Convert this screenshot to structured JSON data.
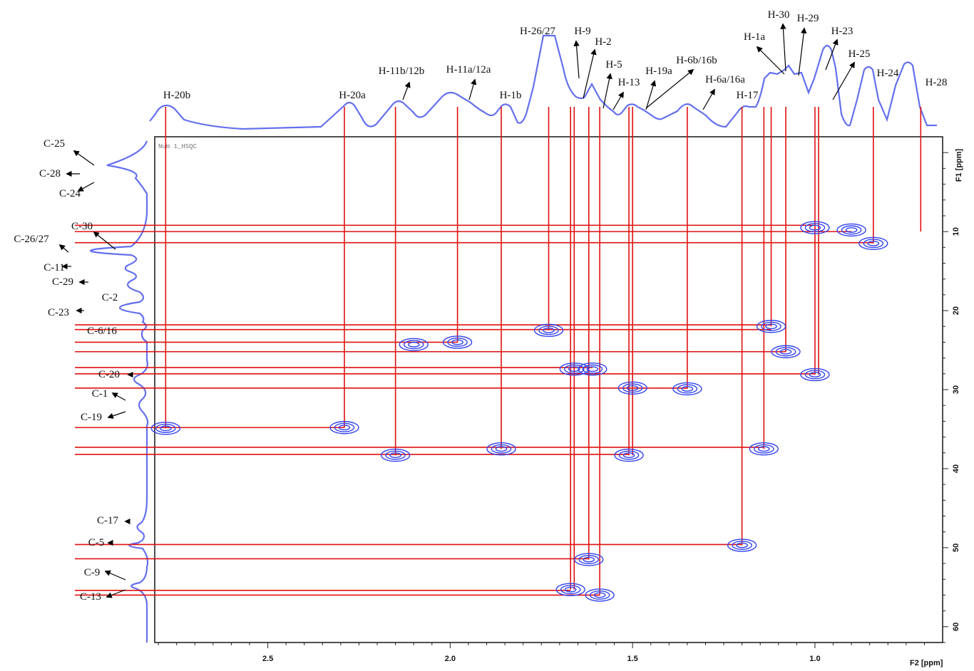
{
  "chart_data": {
    "type": "scatter",
    "title": "",
    "experiment_label": "Num 1_HSQC",
    "xlabel": "F2 [ppm]",
    "ylabel": "F1 [ppm]",
    "xlim": [
      2.81,
      0.65
    ],
    "ylim": [
      -2,
      62
    ],
    "x_reversed": true,
    "x_ticks": [
      "2.5",
      "2.0",
      "1.5",
      "1.0"
    ],
    "x_tick_values": [
      2.5,
      2.0,
      1.5,
      1.0
    ],
    "y_ticks": [
      "10",
      "20",
      "30",
      "40",
      "50",
      "60"
    ],
    "y_tick_values": [
      10,
      20,
      30,
      40,
      50,
      60
    ],
    "contour_color": "#3344ee",
    "line_color": "#e01010",
    "cross_peaks": [
      {
        "h": 1.0,
        "c": 9.5
      },
      {
        "h": 0.9,
        "c": 9.8
      },
      {
        "h": 0.84,
        "c": 11.5
      },
      {
        "h": 1.73,
        "c": 22.5
      },
      {
        "h": 1.12,
        "c": 22.0
      },
      {
        "h": 1.98,
        "c": 24.0
      },
      {
        "h": 2.1,
        "c": 24.3
      },
      {
        "h": 1.08,
        "c": 25.2
      },
      {
        "h": 1.66,
        "c": 27.4
      },
      {
        "h": 1.61,
        "c": 27.4
      },
      {
        "h": 1.0,
        "c": 28.1
      },
      {
        "h": 1.5,
        "c": 29.8
      },
      {
        "h": 1.35,
        "c": 29.9
      },
      {
        "h": 2.78,
        "c": 34.9
      },
      {
        "h": 2.29,
        "c": 34.8
      },
      {
        "h": 1.86,
        "c": 37.5
      },
      {
        "h": 1.14,
        "c": 37.5
      },
      {
        "h": 2.15,
        "c": 38.3
      },
      {
        "h": 1.51,
        "c": 38.3
      },
      {
        "h": 1.2,
        "c": 49.7
      },
      {
        "h": 1.62,
        "c": 51.5
      },
      {
        "h": 1.67,
        "c": 55.3
      },
      {
        "h": 1.59,
        "c": 56.0
      }
    ],
    "h_assignments": [
      {
        "label": "H-20b",
        "h": 2.78
      },
      {
        "label": "H-20a",
        "h": 2.29
      },
      {
        "label": "H-11b/12b",
        "h": 2.15
      },
      {
        "label": "H-11a/12a",
        "h": 1.98
      },
      {
        "label": "H-1b",
        "h": 1.86
      },
      {
        "label": "H-26/27",
        "h": 1.73
      },
      {
        "label": "H-9",
        "h": 1.67
      },
      {
        "label": "H-2",
        "h": 1.66
      },
      {
        "label": "H-5",
        "h": 1.62
      },
      {
        "label": "H-13",
        "h": 1.59
      },
      {
        "label": "H-19a",
        "h": 1.51
      },
      {
        "label": "H-6b/16b",
        "h": 1.5
      },
      {
        "label": "H-6a/16a",
        "h": 1.35
      },
      {
        "label": "H-17",
        "h": 1.2
      },
      {
        "label": "H-1a",
        "h": 1.14
      },
      {
        "label": "H-30",
        "h": 1.12
      },
      {
        "label": "H-29",
        "h": 1.08
      },
      {
        "label": "H-23",
        "h": 1.0
      },
      {
        "label": "H-25",
        "h": 0.99
      },
      {
        "label": "H-24",
        "h": 0.84
      },
      {
        "label": "H-28",
        "h": 0.71
      }
    ],
    "c_assignments": [
      {
        "label": "C-25",
        "c": 9.2
      },
      {
        "label": "C-28",
        "c": 10.0
      },
      {
        "label": "C-24",
        "c": 11.4
      },
      {
        "label": "C-30",
        "c": 21.8
      },
      {
        "label": "C-26/27",
        "c": 22.4
      },
      {
        "label": "C-11",
        "c": 24.0
      },
      {
        "label": "C-29",
        "c": 25.2
      },
      {
        "label": "C-2",
        "c": 27.2
      },
      {
        "label": "C-23",
        "c": 28.0
      },
      {
        "label": "C-6/16",
        "c": 29.8
      },
      {
        "label": "C-20",
        "c": 34.8
      },
      {
        "label": "C-1",
        "c": 37.3
      },
      {
        "label": "C-19",
        "c": 38.2
      },
      {
        "label": "C-17",
        "c": 49.6
      },
      {
        "label": "C-5",
        "c": 51.4
      },
      {
        "label": "C-9",
        "c": 55.4
      },
      {
        "label": "C-13",
        "c": 56.0
      }
    ]
  }
}
